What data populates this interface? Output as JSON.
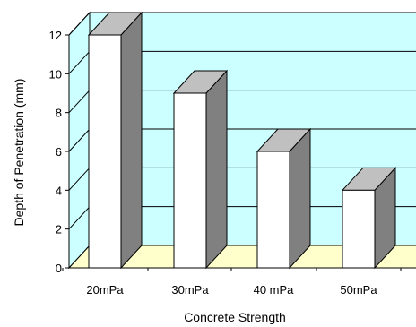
{
  "chart_data": {
    "type": "bar",
    "title": "",
    "xlabel": "Concrete Strength",
    "ylabel": "Depth of Penetration (mm)",
    "categories": [
      "20mPa",
      "30mPa",
      "40 mPa",
      "50mPa"
    ],
    "values": [
      12,
      9,
      6,
      4
    ],
    "ylim": [
      0,
      12
    ],
    "yticks": [
      "0",
      "2",
      "4",
      "6",
      "8",
      "10",
      "12"
    ],
    "grid": true,
    "legend": "none",
    "colors": {
      "wall": "#ccffff",
      "floor": "#ffffcc",
      "bar_front": "#ffffff",
      "bar_side": "#808080",
      "bar_top": "#c0c0c0",
      "outline": "#000000"
    }
  }
}
